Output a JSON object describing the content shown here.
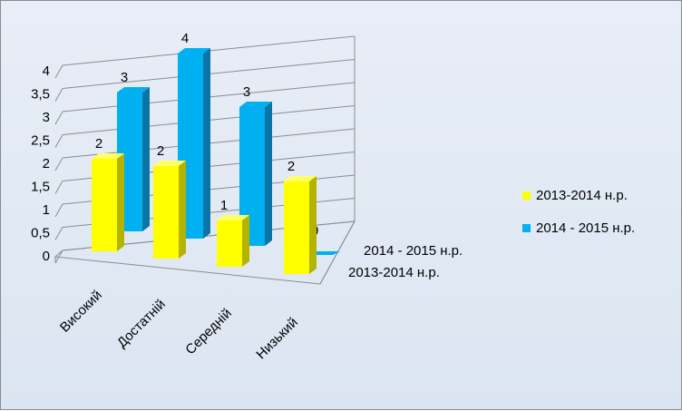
{
  "chart_data": {
    "type": "bar",
    "categories": [
      "Високий",
      "Достатній",
      "Середній",
      "Низький"
    ],
    "series": [
      {
        "name": "2013-2014 н.р.",
        "values": [
          2,
          2,
          1,
          2
        ],
        "color": "#ffff00"
      },
      {
        "name": "2014 - 2015 н.р.",
        "values": [
          3,
          4,
          3,
          0
        ],
        "color": "#00b0f0"
      }
    ],
    "depth_labels": [
      "2014 - 2015 н.р.",
      "2013-2014 н.р."
    ],
    "y_ticks": [
      "0",
      "0,5",
      "1",
      "1,5",
      "2",
      "2,5",
      "3",
      "3,5",
      "4"
    ],
    "ylim": [
      0,
      4
    ],
    "grid": true,
    "legend_position": "right",
    "style": "3d-column"
  }
}
